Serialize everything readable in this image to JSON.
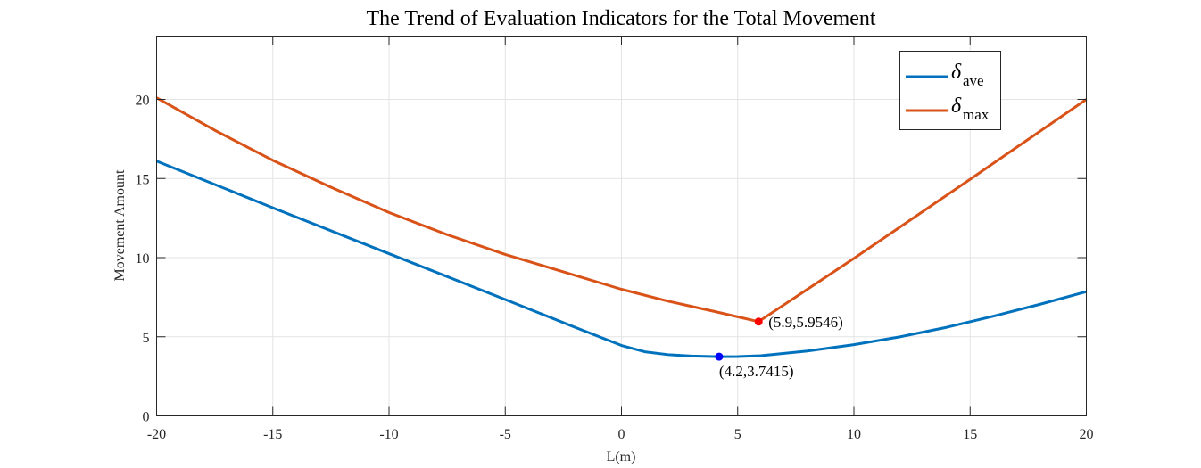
{
  "colors": {
    "series_ave": "#0072BD",
    "series_max": "#D95319",
    "marker_ave": "#0000FF",
    "marker_max": "#FF0000",
    "grid": "#e3e3e3",
    "axis": "#262626"
  },
  "chart_data": {
    "type": "line",
    "title": "The Trend of Evaluation Indicators for the Total Movement",
    "xlabel": "L(m)",
    "ylabel": "Movement Amount",
    "xlim": [
      -20,
      20
    ],
    "ylim": [
      0,
      24
    ],
    "xticks": [
      -20,
      -15,
      -10,
      -5,
      0,
      5,
      10,
      15,
      20
    ],
    "yticks": [
      0,
      5,
      10,
      15,
      20
    ],
    "grid": true,
    "legend_position": "top-right",
    "series": [
      {
        "name_symbol": "δ",
        "name_sub": "ave",
        "x": [
          -20,
          -15,
          -10,
          -5,
          -2,
          0,
          1,
          2,
          3,
          4.2,
          5,
          6,
          8,
          10,
          12,
          14,
          16,
          18,
          20
        ],
        "y": [
          16.1,
          13.15,
          10.25,
          7.35,
          5.6,
          4.45,
          4.05,
          3.87,
          3.78,
          3.7415,
          3.75,
          3.8,
          4.1,
          4.5,
          5.0,
          5.6,
          6.3,
          7.05,
          7.85
        ]
      },
      {
        "name_symbol": "δ",
        "name_sub": "max",
        "x": [
          -20,
          -17.5,
          -15,
          -12.5,
          -10,
          -7.5,
          -5,
          -2.5,
          0,
          2,
          4,
          5.9,
          10,
          15,
          20
        ],
        "y": [
          20.1,
          18.05,
          16.15,
          14.45,
          12.85,
          11.45,
          10.2,
          9.1,
          8.0,
          7.25,
          6.6,
          5.9546,
          9.95,
          14.95,
          20.0
        ]
      }
    ],
    "annotations": [
      {
        "series": 0,
        "x": 4.2,
        "y": 3.7415,
        "label": "(4.2,3.7415)"
      },
      {
        "series": 1,
        "x": 5.9,
        "y": 5.9546,
        "label": "(5.9,5.9546)"
      }
    ]
  }
}
